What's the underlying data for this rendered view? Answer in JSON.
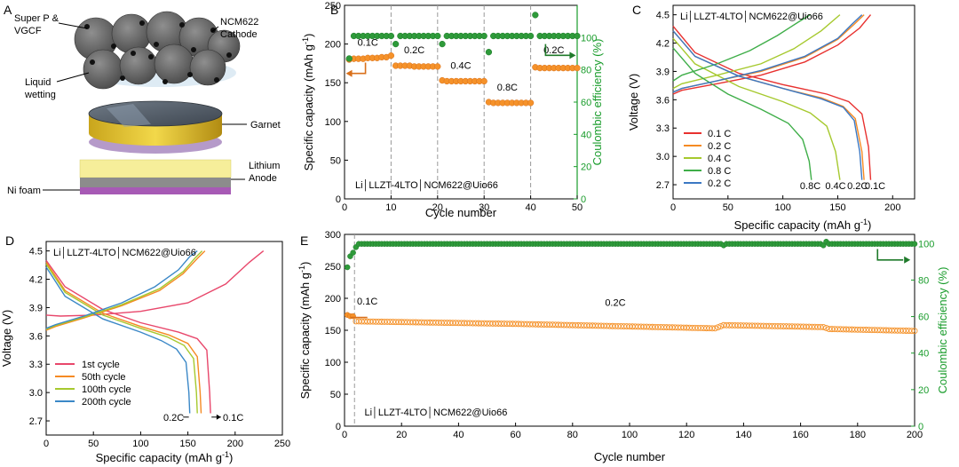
{
  "panel_a": {
    "letter": "A",
    "label_conductive": "Super P &",
    "label_conductive_2": "VGCF",
    "label_cathode": "NCM622",
    "label_cathode_2": "Cathode",
    "label_wetting": "Liquid",
    "label_wetting_2": "wetting",
    "label_garnet": "Garnet",
    "label_anode": "Lithium",
    "label_anode_2": "Anode",
    "label_foam": "Ni foam"
  },
  "colors": {
    "orange": "#f5922a",
    "orange_edge": "#d9701b",
    "green": "#2e9a3a",
    "green_edge": "#1f7a2a",
    "axis_green": "#199c2b",
    "rate_01": "#e8312f",
    "rate_02": "#f58a23",
    "rate_04": "#a6c92e",
    "rate_08": "#3fae49",
    "rate_02b": "#3b78c3",
    "cyc_1": "#e8476b",
    "cyc_50": "#f58a23",
    "cyc_100": "#a6c92e",
    "cyc_200": "#3b88c7"
  },
  "chart_data": [
    {
      "id": "B",
      "type": "scatter",
      "title": "",
      "cell_label": "Li | LLZT-4LTO | NCM622@Uio66",
      "xlabel": "Cycle number",
      "ylabel": "Specific capacity (mAh g-1)",
      "y2label": "Coulombic efficiency (%)",
      "xlim": [
        0,
        50
      ],
      "ylim": [
        0,
        250
      ],
      "y2lim": [
        0,
        120
      ],
      "xticks": [
        "0",
        "10",
        "20",
        "30",
        "40",
        "50"
      ],
      "yticks": [
        "0",
        "50",
        "100",
        "150",
        "200",
        "250"
      ],
      "y2ticks": [
        "0",
        "20",
        "40",
        "60",
        "80",
        "100"
      ],
      "rate_labels": [
        "0.1C",
        "0.2C",
        "0.4C",
        "0.8C",
        "0.2C"
      ],
      "dividers": [
        10,
        20,
        30,
        40
      ],
      "series": [
        {
          "name": "Specific capacity",
          "axis": "left",
          "x": [
            1,
            2,
            3,
            4,
            5,
            6,
            7,
            8,
            9,
            10,
            11,
            12,
            13,
            14,
            15,
            16,
            17,
            18,
            19,
            20,
            21,
            22,
            23,
            24,
            25,
            26,
            27,
            28,
            29,
            30,
            31,
            32,
            33,
            34,
            35,
            36,
            37,
            38,
            39,
            40,
            41,
            42,
            43,
            44,
            45,
            46,
            47,
            48,
            49,
            50
          ],
          "values": [
            180,
            181,
            181,
            181,
            182,
            182,
            182,
            183,
            183,
            185,
            172,
            172,
            172,
            172,
            171,
            171,
            171,
            171,
            171,
            171,
            153,
            152,
            152,
            152,
            152,
            152,
            152,
            152,
            152,
            152,
            125,
            124,
            124,
            124,
            124,
            124,
            124,
            124,
            124,
            124,
            170,
            169,
            169,
            169,
            169,
            169,
            169,
            169,
            169,
            169
          ]
        },
        {
          "name": "Coulombic efficiency",
          "axis": "right",
          "x": [
            1,
            2,
            3,
            4,
            5,
            6,
            7,
            8,
            9,
            10,
            11,
            12,
            13,
            14,
            15,
            16,
            17,
            18,
            19,
            20,
            21,
            22,
            23,
            24,
            25,
            26,
            27,
            28,
            29,
            30,
            31,
            32,
            33,
            34,
            35,
            36,
            37,
            38,
            39,
            40,
            41,
            42,
            43,
            44,
            45,
            46,
            47,
            48,
            49,
            50
          ],
          "values": [
            87,
            101,
            101,
            101,
            101,
            101,
            101,
            101,
            101,
            101,
            96,
            101,
            101,
            101,
            101,
            101,
            101,
            101,
            101,
            101,
            96,
            101,
            101,
            101,
            101,
            101,
            101,
            101,
            101,
            101,
            91,
            101,
            101,
            101,
            101,
            101,
            101,
            101,
            101,
            101,
            114,
            101,
            101,
            101,
            101,
            101,
            101,
            101,
            101,
            101
          ]
        }
      ]
    },
    {
      "id": "C",
      "type": "line",
      "title": "",
      "cell_label": "Li | LLZT-4LTO | NCM622@Uio66",
      "xlabel": "Specific capacity (mAh g-1)",
      "ylabel": "Voltage (V)",
      "xlim": [
        0,
        220
      ],
      "ylim": [
        2.55,
        4.6
      ],
      "xticks": [
        "0",
        "50",
        "100",
        "150",
        "200"
      ],
      "yticks": [
        "2.7",
        "3.0",
        "3.3",
        "3.6",
        "3.9",
        "4.2",
        "4.5"
      ],
      "end_labels": [
        "0.8C",
        "0.4C",
        "0.2C",
        "0.1C"
      ],
      "series": [
        {
          "name": "0.1 C",
          "color_key": "rate_01",
          "charge": {
            "x": [
              0,
              8,
              40,
              80,
              120,
              150,
              170,
              180
            ],
            "y": [
              3.66,
              3.7,
              3.77,
              3.86,
              4.0,
              4.18,
              4.36,
              4.5
            ]
          },
          "discharge": {
            "x": [
              0,
              20,
              60,
              100,
              140,
              160,
              172,
              178,
              180
            ],
            "y": [
              4.38,
              4.1,
              3.88,
              3.76,
              3.66,
              3.58,
              3.45,
              3.1,
              2.75
            ]
          }
        },
        {
          "name": "0.2 C",
          "color_key": "rate_02",
          "charge": {
            "x": [
              0,
              8,
              40,
              80,
              120,
              150,
              165,
              174
            ],
            "y": [
              3.68,
              3.72,
              3.8,
              3.9,
              4.05,
              4.24,
              4.4,
              4.5
            ]
          },
          "discharge": {
            "x": [
              0,
              20,
              60,
              100,
              135,
              155,
              166,
              172,
              174
            ],
            "y": [
              4.33,
              4.06,
              3.85,
              3.72,
              3.62,
              3.53,
              3.4,
              3.05,
              2.75
            ]
          }
        },
        {
          "name": "0.4 C",
          "color_key": "rate_04",
          "charge": {
            "x": [
              0,
              8,
              40,
              80,
              110,
              135,
              152
            ],
            "y": [
              3.72,
              3.77,
              3.86,
              3.98,
              4.14,
              4.33,
              4.5
            ]
          },
          "discharge": {
            "x": [
              0,
              20,
              60,
              100,
              125,
              140,
              148,
              152
            ],
            "y": [
              4.25,
              3.98,
              3.74,
              3.58,
              3.46,
              3.32,
              3.05,
              2.75
            ]
          }
        },
        {
          "name": "0.8 C",
          "color_key": "rate_08",
          "charge": {
            "x": [
              0,
              8,
              40,
              70,
              95,
              115,
              125
            ],
            "y": [
              3.8,
              3.86,
              3.98,
              4.12,
              4.28,
              4.43,
              4.5
            ]
          },
          "discharge": {
            "x": [
              0,
              20,
              50,
              80,
              105,
              118,
              124,
              126
            ],
            "y": [
              4.15,
              3.88,
              3.66,
              3.5,
              3.35,
              3.18,
              2.95,
              2.75
            ]
          }
        },
        {
          "name": "0.2 C",
          "color_key": "rate_02b",
          "charge": {
            "x": [
              0,
              8,
              40,
              80,
              120,
              150,
              163,
              172
            ],
            "y": [
              3.68,
              3.72,
              3.8,
              3.91,
              4.06,
              4.25,
              4.4,
              4.5
            ]
          },
          "discharge": {
            "x": [
              0,
              20,
              60,
              100,
              135,
              155,
              165,
              170,
              172
            ],
            "y": [
              4.33,
              4.06,
              3.85,
              3.72,
              3.61,
              3.52,
              3.38,
              3.05,
              2.75
            ]
          }
        }
      ]
    },
    {
      "id": "D",
      "type": "line",
      "title": "",
      "cell_label": "Li | LLZT-4LTO | NCM622@Uio66",
      "xlabel": "Specific capacity (mAh g-1)",
      "ylabel": "Voltage (V)",
      "xlim": [
        0,
        250
      ],
      "ylim": [
        2.55,
        4.6
      ],
      "xticks": [
        "0",
        "50",
        "100",
        "150",
        "200",
        "250"
      ],
      "yticks": [
        "2.7",
        "3.0",
        "3.3",
        "3.6",
        "3.9",
        "4.2",
        "4.5"
      ],
      "rate_left": "0.2C",
      "rate_right": "0.1C",
      "series": [
        {
          "name": "1st cycle",
          "color_key": "cyc_1",
          "charge": {
            "x": [
              0,
              15,
              50,
              100,
              150,
              190,
              215,
              230
            ],
            "y": [
              3.82,
              3.81,
              3.82,
              3.86,
              3.95,
              4.15,
              4.38,
              4.5
            ]
          },
          "discharge": {
            "x": [
              0,
              20,
              60,
              100,
              140,
              160,
              170,
              173,
              174
            ],
            "y": [
              4.4,
              4.12,
              3.88,
              3.74,
              3.64,
              3.57,
              3.45,
              3.0,
              2.78
            ]
          }
        },
        {
          "name": "50th cycle",
          "color_key": "cyc_50",
          "charge": {
            "x": [
              0,
              10,
              40,
              80,
              120,
              145,
              160,
              168
            ],
            "y": [
              3.66,
              3.7,
              3.79,
              3.92,
              4.08,
              4.26,
              4.42,
              4.5
            ]
          },
          "discharge": {
            "x": [
              0,
              20,
              60,
              100,
              130,
              150,
              160,
              163,
              164
            ],
            "y": [
              4.38,
              4.08,
              3.84,
              3.7,
              3.61,
              3.52,
              3.38,
              3.0,
              2.78
            ]
          }
        },
        {
          "name": "100th cycle",
          "color_key": "cyc_100",
          "charge": {
            "x": [
              0,
              10,
              40,
              80,
              120,
              145,
              158,
              165
            ],
            "y": [
              3.67,
              3.71,
              3.8,
              3.93,
              4.1,
              4.28,
              4.43,
              4.5
            ]
          },
          "discharge": {
            "x": [
              0,
              20,
              60,
              100,
              128,
              146,
              156,
              159,
              160
            ],
            "y": [
              4.36,
              4.06,
              3.82,
              3.68,
              3.59,
              3.5,
              3.36,
              3.0,
              2.78
            ]
          }
        },
        {
          "name": "200th cycle",
          "color_key": "cyc_200",
          "charge": {
            "x": [
              0,
              10,
              40,
              80,
              115,
              140,
              152,
              160
            ],
            "y": [
              3.68,
              3.72,
              3.81,
              3.95,
              4.12,
              4.3,
              4.44,
              4.5
            ]
          },
          "discharge": {
            "x": [
              0,
              20,
              60,
              100,
              122,
              138,
              148,
              151,
              152
            ],
            "y": [
              4.33,
              4.02,
              3.78,
              3.64,
              3.55,
              3.46,
              3.32,
              3.0,
              2.78
            ]
          }
        }
      ]
    },
    {
      "id": "E",
      "type": "scatter",
      "title": "",
      "cell_label": "Li | LLZT-4LTO | NCM622@Uio66",
      "xlabel": "Cycle number",
      "ylabel": "Specific capacity (mAh g-1)",
      "y2label": "Coulombic efficiency (%)",
      "xlim": [
        0,
        200
      ],
      "ylim": [
        0,
        300
      ],
      "y2lim": [
        0,
        105
      ],
      "xticks": [
        "0",
        "20",
        "40",
        "60",
        "80",
        "100",
        "120",
        "140",
        "160",
        "180",
        "200"
      ],
      "yticks": [
        "0",
        "50",
        "100",
        "150",
        "200",
        "250",
        "300"
      ],
      "y2ticks": [
        "0",
        "20",
        "40",
        "60",
        "80",
        "100"
      ],
      "rate_labels": [
        "0.1C",
        "0.2C"
      ],
      "divider": 3.5,
      "capacity_start": [
        [
          1,
          174
        ],
        [
          2,
          172
        ],
        [
          3,
          172
        ]
      ],
      "capacity_anchors": [
        [
          4,
          164
        ],
        [
          60,
          160
        ],
        [
          130,
          153
        ],
        [
          133,
          158
        ],
        [
          168,
          155
        ],
        [
          170,
          152
        ],
        [
          200,
          149
        ]
      ],
      "efficiency_start": [
        [
          1,
          87
        ],
        [
          2,
          93
        ],
        [
          3,
          95
        ],
        [
          4,
          98
        ]
      ],
      "efficiency_anchors": [
        [
          5,
          99.8
        ],
        [
          200,
          99.8
        ]
      ],
      "efficiency_blips": [
        [
          133,
          99.0
        ],
        [
          168,
          99.0
        ],
        [
          169,
          101.0
        ]
      ]
    }
  ]
}
